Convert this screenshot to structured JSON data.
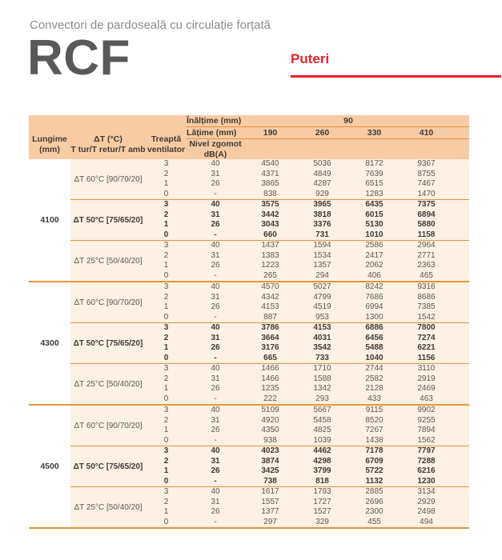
{
  "page": {
    "subtitle": "Convectori de pardoseală cu circulație forțată",
    "product_code": "RCF",
    "section_title": "Puteri",
    "accent_red": "#e8202e",
    "header_peach": "#f8cba3",
    "body_cream": "#fcf1e2",
    "line_orange": "#e6953f"
  },
  "table": {
    "header": {
      "lungime": [
        "Lungime",
        "(mm)"
      ],
      "delta_t": [
        "ΔT (°C)",
        "T tur/T retur/T amb"
      ],
      "treapta": [
        "Treaptă",
        "ventilator"
      ],
      "nivel_zgomot": [
        "Nivel zgomot",
        "dB(A)"
      ],
      "inaltime_label": "Înălțime (mm)",
      "inaltime_value": "90",
      "latime_label": "Lățime (mm)",
      "latime_values": [
        "190",
        "260",
        "330",
        "410"
      ]
    },
    "groups": [
      {
        "lungime": "4100",
        "subgroups": [
          {
            "delta_t": "ΔT 60°C [90/70/20]",
            "bold": false,
            "rows": [
              {
                "treapta": "3",
                "zgomot": "40",
                "values": [
                  4540,
                  5036,
                  8172,
                  9367
                ]
              },
              {
                "treapta": "2",
                "zgomot": "31",
                "values": [
                  4371,
                  4849,
                  7639,
                  8755
                ]
              },
              {
                "treapta": "1",
                "zgomot": "26",
                "values": [
                  3865,
                  4287,
                  6515,
                  7467
                ]
              },
              {
                "treapta": "0",
                "zgomot": "-",
                "values": [
                  838,
                  929,
                  1283,
                  1470
                ]
              }
            ]
          },
          {
            "delta_t": "ΔT 50°C [75/65/20]",
            "bold": true,
            "rows": [
              {
                "treapta": "3",
                "zgomot": "40",
                "values": [
                  3575,
                  3965,
                  6435,
                  7375
                ]
              },
              {
                "treapta": "2",
                "zgomot": "31",
                "values": [
                  3442,
                  3818,
                  6015,
                  6894
                ]
              },
              {
                "treapta": "1",
                "zgomot": "26",
                "values": [
                  3043,
                  3376,
                  5130,
                  5880
                ]
              },
              {
                "treapta": "0",
                "zgomot": "-",
                "values": [
                  660,
                  731,
                  1010,
                  1158
                ]
              }
            ]
          },
          {
            "delta_t": "ΔT 25°C [50/40/20]",
            "bold": false,
            "rows": [
              {
                "treapta": "3",
                "zgomot": "40",
                "values": [
                  1437,
                  1594,
                  2586,
                  2964
                ]
              },
              {
                "treapta": "2",
                "zgomot": "31",
                "values": [
                  1383,
                  1534,
                  2417,
                  2771
                ]
              },
              {
                "treapta": "1",
                "zgomot": "26",
                "values": [
                  1223,
                  1357,
                  2062,
                  2363
                ]
              },
              {
                "treapta": "0",
                "zgomot": "-",
                "values": [
                  265,
                  294,
                  406,
                  465
                ]
              }
            ]
          }
        ]
      },
      {
        "lungime": "4300",
        "subgroups": [
          {
            "delta_t": "ΔT 60°C [90/70/20]",
            "bold": false,
            "rows": [
              {
                "treapta": "3",
                "zgomot": "40",
                "values": [
                  4570,
                  5027,
                  8242,
                  9316
                ]
              },
              {
                "treapta": "2",
                "zgomot": "31",
                "values": [
                  4342,
                  4799,
                  7686,
                  8686
                ]
              },
              {
                "treapta": "1",
                "zgomot": "26",
                "values": [
                  4153,
                  4519,
                  6994,
                  7385
                ]
              },
              {
                "treapta": "0",
                "zgomot": "-",
                "values": [
                  887,
                  953,
                  1300,
                  1542
                ]
              }
            ]
          },
          {
            "delta_t": "ΔT 50°C [75/65/20]",
            "bold": true,
            "rows": [
              {
                "treapta": "3",
                "zgomot": "40",
                "values": [
                  3786,
                  4153,
                  6886,
                  7800
                ]
              },
              {
                "treapta": "2",
                "zgomot": "31",
                "values": [
                  3664,
                  4031,
                  6456,
                  7274
                ]
              },
              {
                "treapta": "1",
                "zgomot": "26",
                "values": [
                  3176,
                  3542,
                  5488,
                  6221
                ]
              },
              {
                "treapta": "0",
                "zgomot": "-",
                "values": [
                  665,
                  733,
                  1040,
                  1156
                ]
              }
            ]
          },
          {
            "delta_t": "ΔT 25°C [50/40/20]",
            "bold": false,
            "rows": [
              {
                "treapta": "3",
                "zgomot": "40",
                "values": [
                  1466,
                  1710,
                  2744,
                  3110
                ]
              },
              {
                "treapta": "2",
                "zgomot": "31",
                "values": [
                  1466,
                  1588,
                  2582,
                  2919
                ]
              },
              {
                "treapta": "1",
                "zgomot": "26",
                "values": [
                  1235,
                  1342,
                  2128,
                  2469
                ]
              },
              {
                "treapta": "0",
                "zgomot": "-",
                "values": [
                  222,
                  293,
                  433,
                  463
                ]
              }
            ]
          }
        ]
      },
      {
        "lungime": "4500",
        "subgroups": [
          {
            "delta_t": "ΔT 60°C [90/70/20]",
            "bold": false,
            "rows": [
              {
                "treapta": "3",
                "zgomot": "40",
                "values": [
                  5109,
                  5667,
                  9115,
                  9902
                ]
              },
              {
                "treapta": "2",
                "zgomot": "31",
                "values": [
                  4920,
                  5458,
                  8520,
                  9255
                ]
              },
              {
                "treapta": "1",
                "zgomot": "26",
                "values": [
                  4350,
                  4825,
                  7267,
                  7894
                ]
              },
              {
                "treapta": "0",
                "zgomot": "-",
                "values": [
                  938,
                  1039,
                  1438,
                  1562
                ]
              }
            ]
          },
          {
            "delta_t": "ΔT 50°C [75/65/20]",
            "bold": true,
            "rows": [
              {
                "treapta": "3",
                "zgomot": "40",
                "values": [
                  4023,
                  4462,
                  7178,
                  7797
                ]
              },
              {
                "treapta": "2",
                "zgomot": "31",
                "values": [
                  3874,
                  4298,
                  6709,
                  7288
                ]
              },
              {
                "treapta": "1",
                "zgomot": "26",
                "values": [
                  3425,
                  3799,
                  5722,
                  6216
                ]
              },
              {
                "treapta": "0",
                "zgomot": "-",
                "values": [
                  738,
                  818,
                  1132,
                  1230
                ]
              }
            ]
          },
          {
            "delta_t": "ΔT 25°C [50/40/20]",
            "bold": false,
            "rows": [
              {
                "treapta": "3",
                "zgomot": "40",
                "values": [
                  1617,
                  1793,
                  2885,
                  3134
                ]
              },
              {
                "treapta": "2",
                "zgomot": "31",
                "values": [
                  1557,
                  1727,
                  2696,
                  2929
                ]
              },
              {
                "treapta": "1",
                "zgomot": "26",
                "values": [
                  1377,
                  1527,
                  2300,
                  2498
                ]
              },
              {
                "treapta": "0",
                "zgomot": "-",
                "values": [
                  297,
                  329,
                  455,
                  494
                ]
              }
            ]
          }
        ]
      }
    ]
  }
}
